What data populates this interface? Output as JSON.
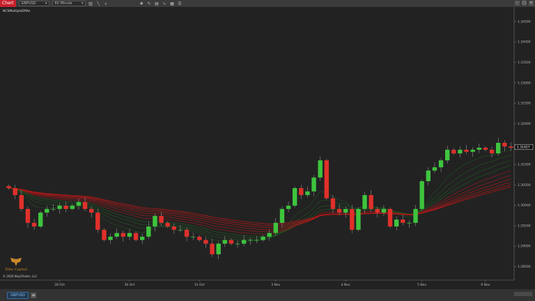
{
  "toolbar": {
    "chart_tab": "Chart",
    "instrument": "GBPUSD",
    "interval": "60 Minute",
    "icons": [
      "bar-type-icon",
      "draw-line-icon",
      "zoom-icon",
      "crosshair-icon",
      "drawing-tools-icon",
      "strategy-icon",
      "indicator-icon",
      "templates-icon",
      "properties-icon",
      "data-box-icon"
    ],
    "window_buttons": [
      "minimize",
      "maximize",
      "close"
    ]
  },
  "indicator_label": "NCSMultipleEMAs",
  "logo_text": "Elite Capital",
  "copyright": "© 2020 NinjaTrader, LLC",
  "tabs": {
    "instrument_tab": "GBPUSD",
    "add_label": "+"
  },
  "colors": {
    "up": "#3ec43e",
    "down": "#e0302a",
    "background": "#222222",
    "ribbon_fast": "#1e6b1e",
    "ribbon_slow": "#b01818"
  },
  "chart_data": {
    "type": "candlestick",
    "current_price": "1.31427",
    "y_ticks": [
      "1.34500",
      "1.34000",
      "1.33500",
      "1.33000",
      "1.32500",
      "1.32000",
      "1.31000",
      "1.30500",
      "1.30000",
      "1.29500",
      "1.29000",
      "1.28500"
    ],
    "y_tick_values": [
      1.345,
      1.34,
      1.335,
      1.33,
      1.325,
      1.32,
      1.31,
      1.305,
      1.3,
      1.295,
      1.29,
      1.285
    ],
    "x_ticks": [
      {
        "label": "28 Oct",
        "bar": 8
      },
      {
        "label": "30 Oct",
        "bar": 19
      },
      {
        "label": "31 Oct",
        "bar": 30
      },
      {
        "label": "3 Nov",
        "bar": 42
      },
      {
        "label": "4 Nov",
        "bar": 53
      },
      {
        "label": "5 Nov",
        "bar": 65
      },
      {
        "label": "6 Nov",
        "bar": 75
      }
    ],
    "close": [
      1.3042,
      1.3025,
      1.2991,
      1.2957,
      1.2948,
      1.2982,
      1.2991,
      1.2991,
      1.2999,
      1.2991,
      1.2999,
      1.3008,
      1.2991,
      1.2982,
      1.294,
      1.2915,
      1.2923,
      1.2932,
      1.2923,
      1.2932,
      1.2915,
      1.2923,
      1.2948,
      1.2974,
      1.2957,
      1.2948,
      1.294,
      1.294,
      1.2923,
      1.2923,
      1.2915,
      1.2906,
      1.288,
      1.2906,
      1.2915,
      1.2906,
      1.2906,
      1.2915,
      1.2915,
      1.2915,
      1.2923,
      1.2932,
      1.2957,
      1.2991,
      1.2999,
      1.3042,
      1.3025,
      1.3034,
      1.3068,
      1.311,
      1.3017,
      1.2991,
      1.2982,
      1.2991,
      1.294,
      1.2991,
      1.3025,
      1.2991,
      1.2982,
      1.2991,
      1.2948,
      1.2965,
      1.2957,
      1.2957,
      1.2991,
      1.3059,
      1.3085,
      1.3093,
      1.311,
      1.3136,
      1.3127,
      1.3136,
      1.3131,
      1.3136,
      1.3141,
      1.3136,
      1.3127,
      1.3153,
      1.3144,
      1.3141
    ],
    "ema_periods": [
      8,
      12,
      16,
      20,
      25,
      30,
      35,
      40,
      45,
      50
    ]
  }
}
